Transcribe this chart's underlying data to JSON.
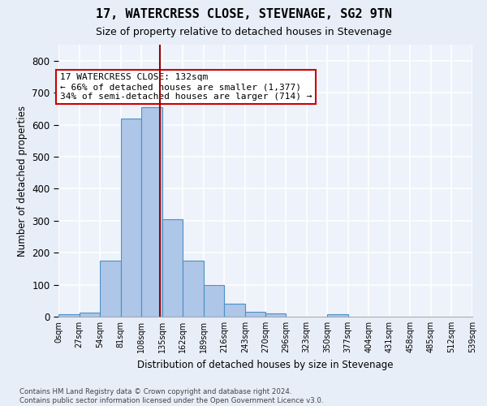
{
  "title": "17, WATERCRESS CLOSE, STEVENAGE, SG2 9TN",
  "subtitle": "Size of property relative to detached houses in Stevenage",
  "xlabel": "Distribution of detached houses by size in Stevenage",
  "ylabel": "Number of detached properties",
  "bin_edges": [
    0,
    27,
    54,
    81,
    108,
    135,
    162,
    189,
    216,
    243,
    270,
    296,
    323,
    350,
    377,
    404,
    431,
    458,
    485,
    512,
    539
  ],
  "bar_heights": [
    8,
    13,
    175,
    620,
    655,
    305,
    175,
    98,
    40,
    15,
    10,
    0,
    0,
    8,
    0,
    0,
    0,
    0,
    0,
    0
  ],
  "bar_color": "#aec6e8",
  "bar_edge_color": "#4a90c4",
  "property_size": 132,
  "property_line_color": "#9b0000",
  "annotation_text": "17 WATERCRESS CLOSE: 132sqm\n← 66% of detached houses are smaller (1,377)\n34% of semi-detached houses are larger (714) →",
  "annotation_box_color": "#ffffff",
  "annotation_box_edge_color": "#cc0000",
  "ylim": [
    0,
    850
  ],
  "yticks": [
    0,
    100,
    200,
    300,
    400,
    500,
    600,
    700,
    800
  ],
  "footer_text": "Contains HM Land Registry data © Crown copyright and database right 2024.\nContains public sector information licensed under the Open Government Licence v3.0.",
  "bg_color": "#e8eef8",
  "plot_bg_color": "#eef2fa",
  "grid_color": "#ffffff",
  "title_fontsize": 11,
  "subtitle_fontsize": 9,
  "annot_fontsize": 8
}
